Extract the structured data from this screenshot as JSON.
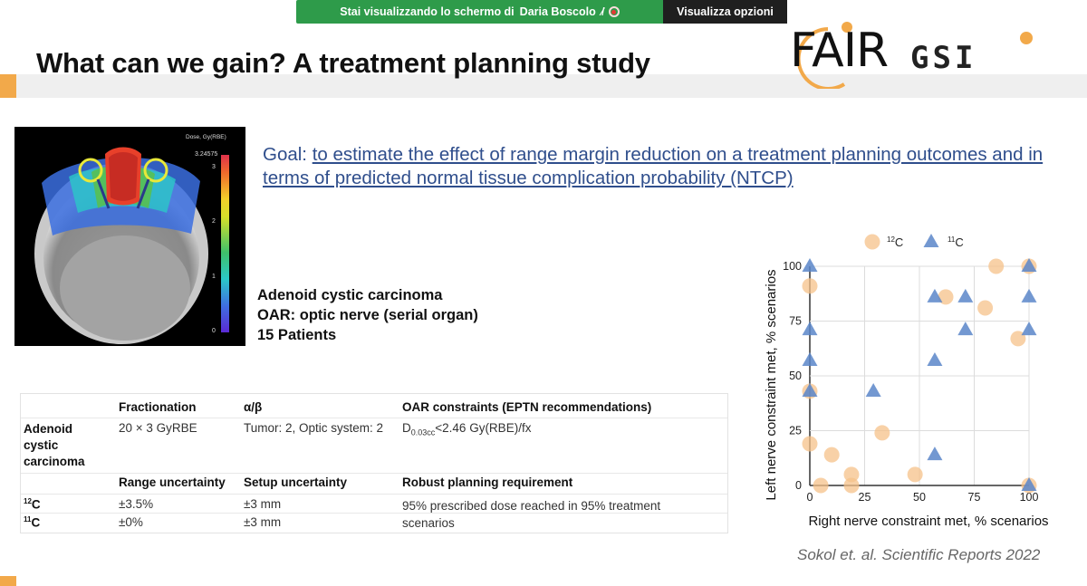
{
  "share_bar": {
    "viewing_prefix": "Stai visualizzando lo schermo di",
    "presenter": "Daria Boscolo",
    "options_label": "Visualizza opzioni"
  },
  "slide": {
    "title": "What can we gain? A treatment planning study",
    "logo_fair": "FAIR",
    "logo_gsi": "GSI",
    "goal_prefix": "Goal: ",
    "goal_text": "to estimate the effect of range margin reduction on a treatment planning outcomes and in terms of predicted normal tissue complication probability (NTCP)",
    "info_lines": [
      "Adenoid cystic carcinoma",
      "OAR: optic nerve (serial organ)",
      "15 Patients"
    ],
    "colorbar": {
      "label": "Dose, Gy(RBE)",
      "max_value": "3.24575",
      "ticks": [
        "3",
        "2",
        "1",
        "0"
      ],
      "tick_levels": [
        3,
        2,
        1,
        0
      ],
      "max": 3.24575
    },
    "table": {
      "header1": [
        "",
        "Fractionation",
        "α/β",
        "OAR constraints (EPTN recommendations)"
      ],
      "row1": {
        "label": "Adenoid cystic carcinoma",
        "fractionation": "20 × 3 GyRBE",
        "alpha_beta": "Tumor: 2, Optic system: 2",
        "constraint_d": "D",
        "constraint_sub": "0.03cc",
        "constraint_rest": "<2.46 Gy(RBE)/fx"
      },
      "header2": [
        "",
        "Range uncertainty",
        "Setup uncertainty",
        "Robust planning requirement"
      ],
      "row_c12": {
        "label_sup": "12",
        "label": "C",
        "range": "±3.5%",
        "setup": "±3 mm",
        "requirement": "95% prescribed dose reached in 95% treatment scenarios"
      },
      "row_c11": {
        "label_sup": "11",
        "label": "C",
        "range": "±0%",
        "setup": "±3 mm"
      }
    },
    "citation": "Sokol et. al. Scientific Reports 2022"
  },
  "chart_data": {
    "type": "scatter",
    "xlabel": "Right nerve constraint met, % scenarios",
    "ylabel": "Left nerve constraint met, % scenarios",
    "xlim": [
      0,
      100
    ],
    "ylim": [
      0,
      100
    ],
    "xticks": [
      0,
      25,
      50,
      75,
      100
    ],
    "yticks": [
      0,
      25,
      50,
      75,
      100
    ],
    "grid": true,
    "legend": "top",
    "series": [
      {
        "name": "12C",
        "name_sup": "12",
        "name_base": "C",
        "marker": "circle",
        "color": "#f5c28a",
        "points": [
          [
            0,
            91
          ],
          [
            0,
            43
          ],
          [
            0,
            19
          ],
          [
            5,
            0
          ],
          [
            10,
            14
          ],
          [
            19,
            5
          ],
          [
            19,
            0
          ],
          [
            33,
            24
          ],
          [
            48,
            5
          ],
          [
            62,
            86
          ],
          [
            80,
            81
          ],
          [
            85,
            100
          ],
          [
            95,
            67
          ],
          [
            100,
            100
          ],
          [
            100,
            0
          ]
        ]
      },
      {
        "name": "11C",
        "name_sup": "11",
        "name_base": "C",
        "marker": "triangle",
        "color": "#5b86c9",
        "points": [
          [
            0,
            100
          ],
          [
            0,
            71
          ],
          [
            0,
            57
          ],
          [
            0,
            43
          ],
          [
            29,
            43
          ],
          [
            57,
            86
          ],
          [
            57,
            57
          ],
          [
            57,
            14
          ],
          [
            71,
            86
          ],
          [
            71,
            71
          ],
          [
            100,
            100
          ],
          [
            100,
            86
          ],
          [
            100,
            71
          ],
          [
            100,
            0
          ]
        ]
      }
    ]
  }
}
